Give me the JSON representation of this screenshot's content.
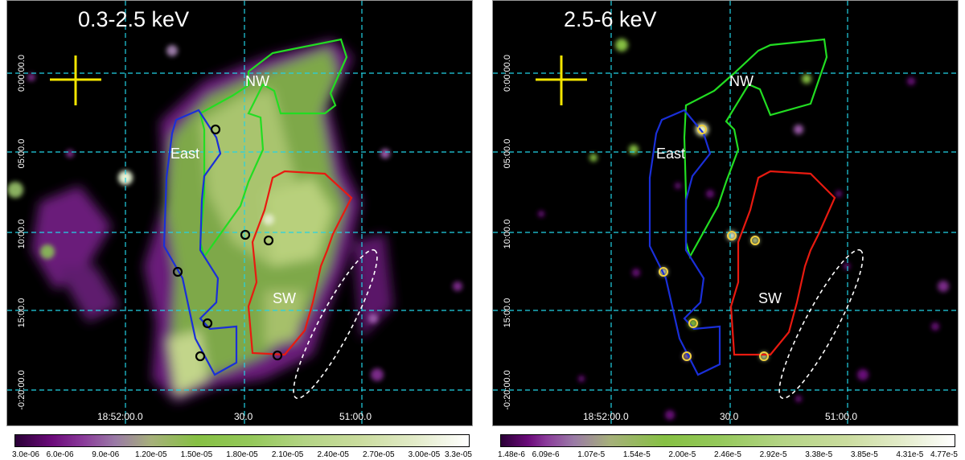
{
  "left_panel": {
    "band": "0.3-2.5 keV",
    "regions": {
      "nw": "NW",
      "east": "East",
      "sw": "SW"
    },
    "ra_labels": [
      "18:52:00.0",
      "30.0",
      "51:00.0"
    ],
    "dec_labels": [
      "0:00:00.0",
      "05:00.0",
      "10:00.0",
      "15:00.0",
      "-0:20:00.0"
    ],
    "colorbar_ticks": [
      "3.0e-06",
      "6.0e-06",
      "9.0e-06",
      "1.20e-05",
      "1.50e-05",
      "1.80e-05",
      "2.10e-05",
      "2.40e-05",
      "2.70e-05",
      "3.00e-05",
      "3.3e-05"
    ]
  },
  "right_panel": {
    "band": "2.5-6 keV",
    "regions": {
      "nw": "NW",
      "east": "East",
      "sw": "SW"
    },
    "ra_labels": [
      "18:52:00.0",
      "30.0",
      "51:00.0"
    ],
    "dec_labels": [
      "0:00:00.0",
      "05:00.0",
      "10:00.0",
      "15:00.0",
      "-0:20:00.0"
    ],
    "colorbar_ticks": [
      "1.48e-6",
      "6.09e-6",
      "1.07e-5",
      "1.54e-5",
      "2.00e-5",
      "2.46e-5",
      "2.92e-5",
      "3.38e-5",
      "3.85e-5",
      "4.31e-5",
      "4.77e-5"
    ]
  },
  "colors": {
    "grid": "#22d3e6",
    "crosshair": "#f5e600",
    "nw_region": "#22dd22",
    "east_region": "#1a2fd8",
    "sw_region": "#e81a10",
    "ellipse": "#ffffff"
  }
}
